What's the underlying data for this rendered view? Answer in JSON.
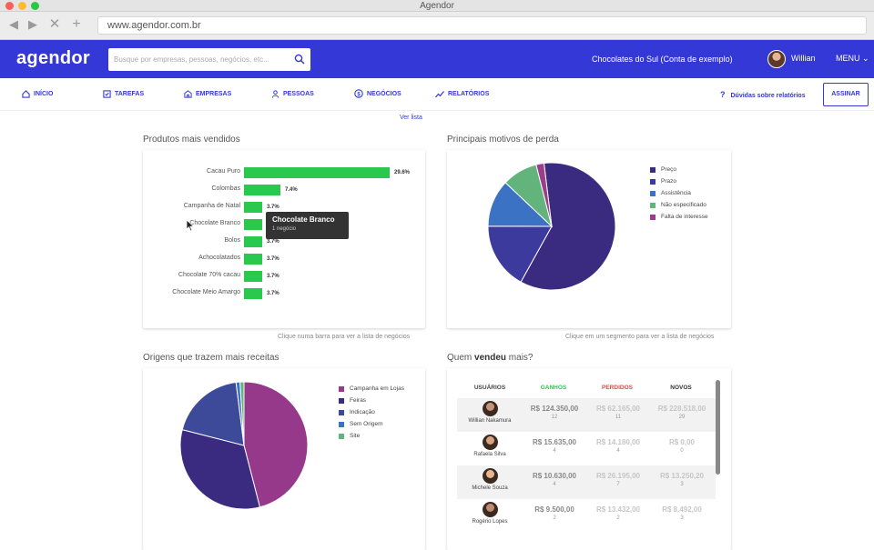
{
  "window": {
    "title": "Agendor",
    "url": "www.agendor.com.br"
  },
  "header": {
    "logo": "agendor",
    "search_placeholder": "Busque por empresas, pessoas, negócios, etc...",
    "account": "Chocolates do Sul (Conta de exemplo)",
    "user": "Willian",
    "menu": "MENU"
  },
  "nav": {
    "items": [
      {
        "label": "INÍCIO",
        "icon": "home-icon"
      },
      {
        "label": "TAREFAS",
        "icon": "checkbox-icon"
      },
      {
        "label": "EMPRESAS",
        "icon": "building-icon"
      },
      {
        "label": "PESSOAS",
        "icon": "person-icon"
      },
      {
        "label": "NEGÓCIOS",
        "icon": "dollar-icon"
      },
      {
        "label": "RELATÓRIOS",
        "icon": "chart-line-icon"
      }
    ],
    "help": "Dúvidas sobre relatórios",
    "cta": "ASSINAR"
  },
  "ver_lista": "Ver lista",
  "products": {
    "title": "Produtos mais vendidos",
    "hint": "Clique numa barra para ver a lista de negócios",
    "tooltip": {
      "title": "Chocolate Branco",
      "subtitle": "1 negócio"
    }
  },
  "loss": {
    "title": "Principais motivos de perda",
    "hint": "Clique em um segmento para ver a lista de negócios"
  },
  "origins": {
    "title": "Origens que trazem mais receitas"
  },
  "sellers": {
    "title_prefix": "Quem ",
    "title_bold": "vendeu",
    "title_suffix": " mais?",
    "headers": {
      "users": "USUÁRIOS",
      "won": "GANHOS",
      "lost": "PERDIDOS",
      "new": "NOVOS"
    },
    "rows": [
      {
        "name": "Willian Nakamura",
        "won": "R$ 124.350,00",
        "won_n": "12",
        "lost": "R$ 62.165,00",
        "lost_n": "11",
        "new": "R$ 228.518,00",
        "new_n": "29"
      },
      {
        "name": "Rafaela Silva",
        "won": "R$ 15.635,00",
        "won_n": "4",
        "lost": "R$ 14.180,00",
        "lost_n": "4",
        "new": "R$ 0,00",
        "new_n": "0"
      },
      {
        "name": "Michele Souza",
        "won": "R$ 10.630,00",
        "won_n": "4",
        "lost": "R$ 26.195,00",
        "lost_n": "7",
        "new": "R$ 13.250,20",
        "new_n": "3"
      },
      {
        "name": "Rogério Lopes",
        "won": "R$ 9.500,00",
        "won_n": "2",
        "lost": "R$ 13.432,00",
        "lost_n": "2",
        "new": "R$ 8.492,00",
        "new_n": "3"
      }
    ]
  },
  "colors": {
    "brand": "#3338d6",
    "green": "#2ac94e",
    "won": "#2ac94e",
    "lost": "#e04848",
    "new": "#333333"
  },
  "chart_data": [
    {
      "type": "bar",
      "orientation": "horizontal",
      "categories": [
        "Cacau Puro",
        "Colombas",
        "Campanha de Natal",
        "Chocolate Branco",
        "Bolos",
        "Achocolatados",
        "Chocolate 70% cacau",
        "Chocolate Meio Amargo"
      ],
      "values": [
        29.6,
        7.4,
        3.7,
        3.7,
        3.7,
        3.7,
        3.7,
        3.7
      ],
      "labels": [
        "29.6%",
        "7.4%",
        "3.7%",
        "3.7%",
        "3.7%",
        "3.7%",
        "3.7%",
        "3.7%"
      ]
    },
    {
      "type": "pie",
      "series": [
        {
          "name": "Preço",
          "value": 60,
          "color": "#3a2a80"
        },
        {
          "name": "Prazo",
          "value": 17,
          "color": "#3d3a9e"
        },
        {
          "name": "Assistência",
          "value": 12,
          "color": "#3c72c4"
        },
        {
          "name": "Não especificado",
          "value": 9,
          "color": "#63b37c"
        },
        {
          "name": "Falta de interesse",
          "value": 2,
          "color": "#9b3d8c"
        }
      ]
    },
    {
      "type": "pie",
      "series": [
        {
          "name": "Campanha em Lojas",
          "value": 46,
          "color": "#96398a"
        },
        {
          "name": "Feiras",
          "value": 33,
          "color": "#3a2a80"
        },
        {
          "name": "Indicação",
          "value": 19,
          "color": "#3d4a9a"
        },
        {
          "name": "Sem Origem",
          "value": 1,
          "color": "#3c72c4"
        },
        {
          "name": "Site",
          "value": 1,
          "color": "#63b37c"
        }
      ]
    }
  ]
}
